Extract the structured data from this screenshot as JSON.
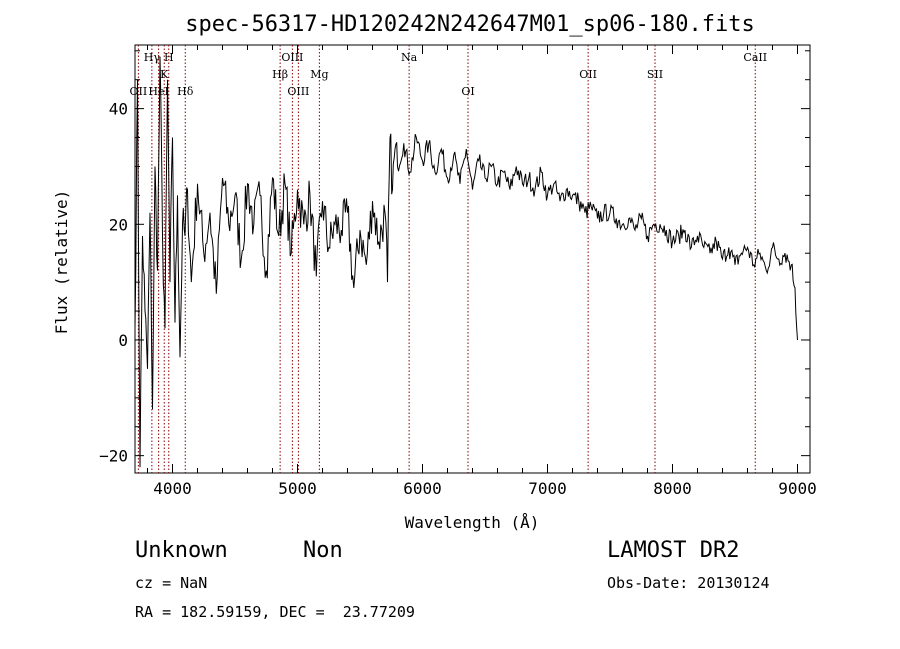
{
  "chart_data": {
    "type": "line",
    "title": "spec-56317-HD120242N242647M01_sp06-180.fits",
    "xlabel": "Wavelength (Å)",
    "ylabel": "Flux (relative)",
    "xlim": [
      3700,
      9100
    ],
    "ylim": [
      -23,
      51
    ],
    "xticks": [
      4000,
      5000,
      6000,
      7000,
      8000,
      9000
    ],
    "yticks": [
      -20,
      0,
      20,
      40
    ],
    "grid": false,
    "series": [
      {
        "name": "spectrum",
        "x": [
          3700,
          3720,
          3740,
          3760,
          3780,
          3800,
          3820,
          3840,
          3860,
          3880,
          3900,
          3920,
          3940,
          3960,
          3980,
          4000,
          4020,
          4040,
          4060,
          4080,
          4100,
          4120,
          4150,
          4200,
          4250,
          4300,
          4350,
          4400,
          4450,
          4500,
          4550,
          4600,
          4650,
          4700,
          4750,
          4800,
          4850,
          4900,
          4950,
          5000,
          5050,
          5100,
          5150,
          5200,
          5250,
          5300,
          5350,
          5400,
          5450,
          5500,
          5550,
          5600,
          5650,
          5700,
          5720,
          5740,
          5760,
          5780,
          5800,
          5850,
          5900,
          5950,
          6000,
          6050,
          6100,
          6150,
          6200,
          6250,
          6300,
          6350,
          6400,
          6450,
          6500,
          6550,
          6600,
          6650,
          6700,
          6750,
          6800,
          6850,
          6900,
          6950,
          7000,
          7050,
          7100,
          7150,
          7200,
          7250,
          7300,
          7350,
          7400,
          7450,
          7500,
          7550,
          7600,
          7650,
          7700,
          7750,
          7800,
          7850,
          7900,
          7950,
          8000,
          8050,
          8100,
          8150,
          8200,
          8250,
          8300,
          8350,
          8400,
          8450,
          8500,
          8550,
          8600,
          8650,
          8700,
          8750,
          8800,
          8850,
          8900,
          8950,
          8980,
          9000
        ],
        "values": [
          2,
          45,
          -22,
          18,
          5,
          -5,
          22,
          -12,
          30,
          12,
          49,
          18,
          2,
          45,
          10,
          35,
          3,
          25,
          -3,
          20,
          18,
          26,
          10,
          27,
          15,
          22,
          8,
          28,
          20,
          25,
          14,
          27,
          20,
          25,
          12,
          28,
          18,
          27,
          15,
          26,
          20,
          25,
          11,
          24,
          16,
          20,
          19,
          22,
          9,
          19,
          13,
          24,
          17,
          22,
          10,
          35,
          26,
          33,
          30,
          34,
          29,
          35,
          31,
          34,
          29,
          33,
          28,
          32,
          27,
          33,
          26,
          31,
          28,
          30,
          27,
          29,
          26,
          30,
          27,
          28,
          26,
          29,
          25,
          27,
          24,
          26,
          25,
          24,
          22,
          23,
          21,
          22,
          22,
          21,
          20,
          21,
          19,
          21,
          18,
          20,
          20,
          19,
          17,
          18,
          19,
          16,
          18,
          16,
          15,
          17,
          14,
          16,
          13,
          15,
          16,
          13,
          15,
          12,
          16,
          14,
          15,
          13,
          9,
          0
        ]
      }
    ],
    "lines": [
      {
        "label": "OII",
        "x": 3727,
        "row": 3
      },
      {
        "label": "Hγ",
        "x": 3835,
        "row": 1
      },
      {
        "label": "H",
        "x": 3970,
        "row": 1
      },
      {
        "label": "K",
        "x": 3934,
        "row": 2
      },
      {
        "label": "HeI",
        "x": 3889,
        "row": 3
      },
      {
        "label": "Hδ",
        "x": 4102,
        "row": 3
      },
      {
        "label": "OIII",
        "x": 4959,
        "row": 1
      },
      {
        "label": "Hβ",
        "x": 4861,
        "row": 2
      },
      {
        "label": "Mg",
        "x": 5175,
        "row": 2
      },
      {
        "label": "OIII",
        "x": 5007,
        "row": 3
      },
      {
        "label": "Na",
        "x": 5893,
        "row": 1
      },
      {
        "label": "OI",
        "x": 6364,
        "row": 3
      },
      {
        "label": "OII",
        "x": 7325,
        "row": 2
      },
      {
        "label": "SII",
        "x": 7860,
        "row": 2
      },
      {
        "label": "CaII",
        "x": 8662,
        "row": 1
      }
    ]
  },
  "info": {
    "object_type": "Unknown",
    "object_subtype": "Non",
    "survey": "LAMOST DR2",
    "cz": "cz = NaN",
    "obs_date": "Obs-Date: 20130124",
    "radec": "RA = 182.59159, DEC =  23.77209"
  },
  "colors": {
    "spectrum": "#000000",
    "line_marker": "#8b0000"
  }
}
